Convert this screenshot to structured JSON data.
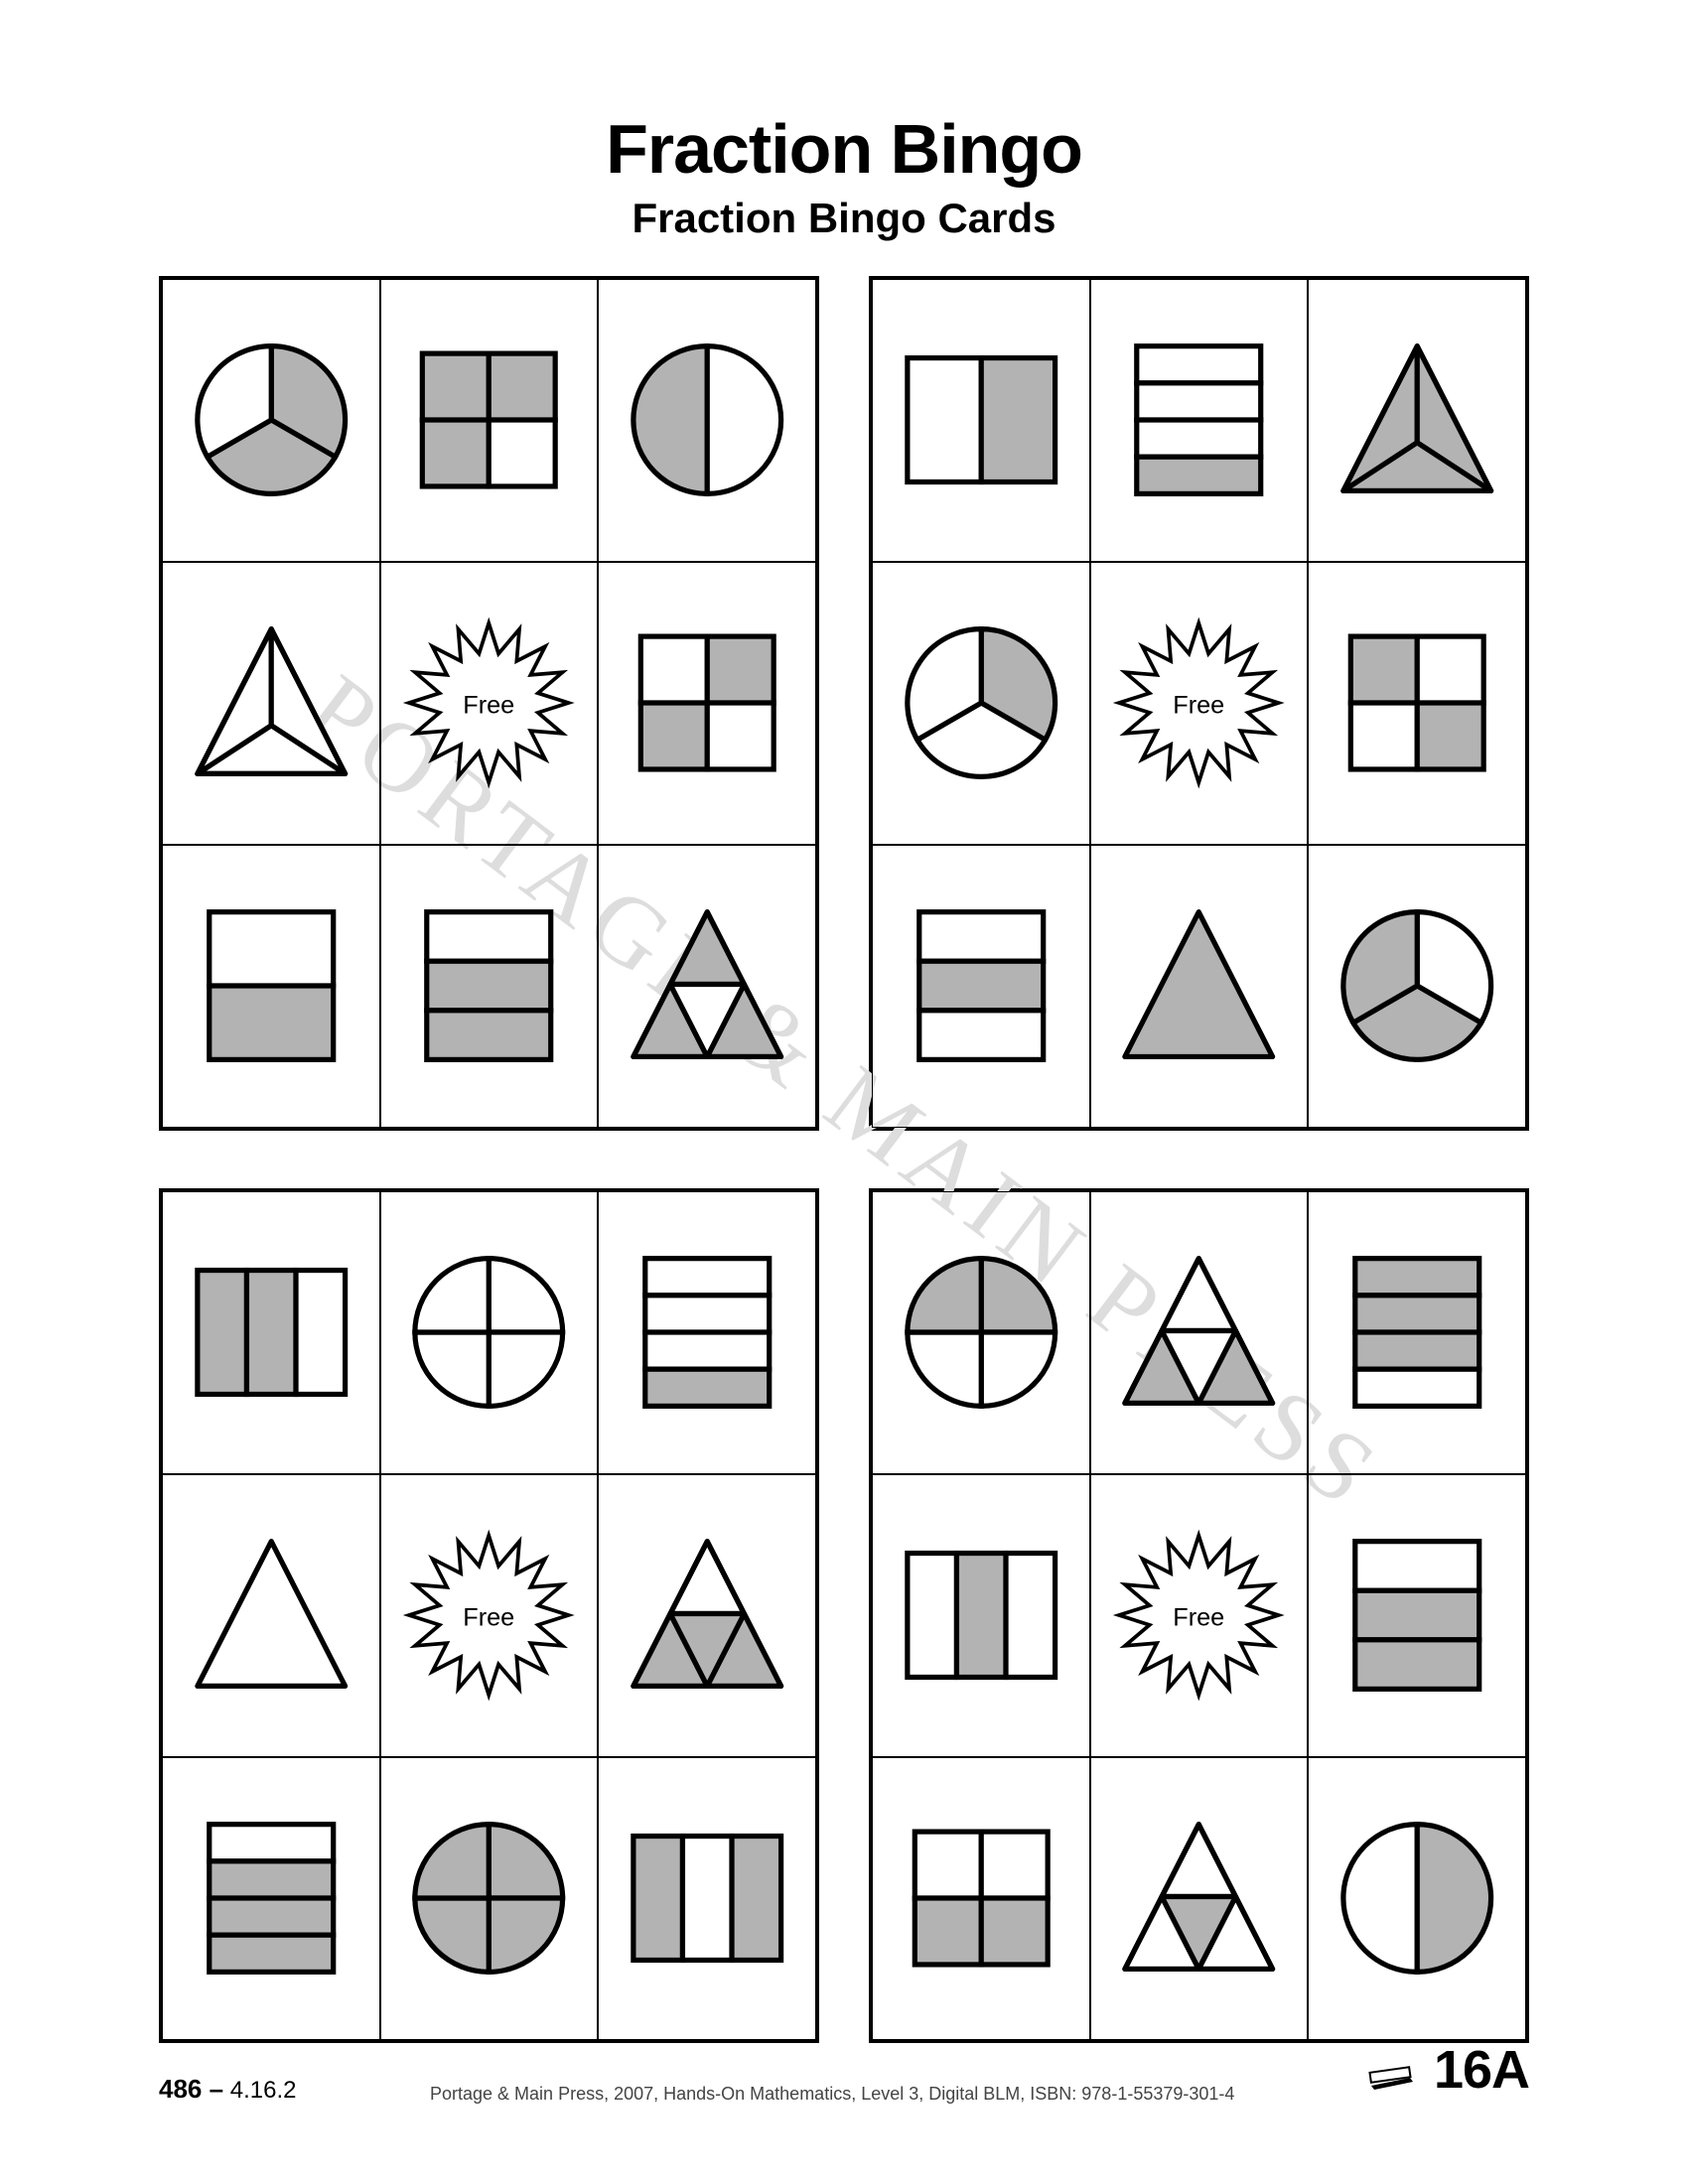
{
  "colors": {
    "fill": "#b3b3b3",
    "stroke": "#000",
    "bg": "#fff"
  },
  "title": "Fraction Bingo",
  "subtitle": "Fraction Bingo Cards",
  "free_label": "Free",
  "watermark": "PORTAGE & MAIN PRESS",
  "footer": {
    "page_left_bold": "486 –",
    "page_left_small": " 4.16.2",
    "center": "Portage & Main Press, 2007, Hands-On Mathematics, Level 3, Digital BLM, ISBN: 978-1-55379-301-4",
    "right": "16A"
  },
  "cards": [
    {
      "cells": [
        {
          "shape": "circle",
          "parts": 3,
          "shaded": [
            0,
            1
          ]
        },
        {
          "shape": "square",
          "parts": 4,
          "shaded": [
            0,
            1,
            2
          ]
        },
        {
          "shape": "circle",
          "parts": 2,
          "shaded": [
            0
          ]
        },
        {
          "shape": "triangle",
          "parts": 3,
          "shaded": []
        },
        {
          "shape": "free"
        },
        {
          "shape": "square",
          "parts": 4,
          "shaded": [
            1,
            2
          ]
        },
        {
          "shape": "rect",
          "parts": 2,
          "orient": "h",
          "shaded": [
            1
          ]
        },
        {
          "shape": "rect",
          "parts": 3,
          "orient": "h",
          "shaded": [
            1,
            2
          ]
        },
        {
          "shape": "triangle",
          "parts": 4,
          "shaded": [
            0,
            1,
            2
          ]
        }
      ]
    },
    {
      "cells": [
        {
          "shape": "rect",
          "parts": 2,
          "orient": "v",
          "shaded": [
            1
          ]
        },
        {
          "shape": "rect",
          "parts": 4,
          "orient": "h",
          "shaded": [
            3
          ]
        },
        {
          "shape": "triangle",
          "parts": 3,
          "shaded": [
            0,
            1,
            2
          ]
        },
        {
          "shape": "circle",
          "parts": 3,
          "shaded": [
            0
          ]
        },
        {
          "shape": "free"
        },
        {
          "shape": "square",
          "parts": 4,
          "shaded": [
            0,
            3
          ]
        },
        {
          "shape": "rect",
          "parts": 3,
          "orient": "h",
          "shaded": [
            1
          ]
        },
        {
          "shape": "triangle",
          "parts": 1,
          "shaded": [
            0
          ]
        },
        {
          "shape": "circle",
          "parts": 3,
          "shaded": [
            1,
            2
          ]
        }
      ]
    },
    {
      "cells": [
        {
          "shape": "rect",
          "parts": 3,
          "orient": "v",
          "shaded": [
            0,
            1
          ]
        },
        {
          "shape": "circle",
          "parts": 4,
          "shaded": []
        },
        {
          "shape": "rect",
          "parts": 4,
          "orient": "h",
          "shaded": [
            3
          ]
        },
        {
          "shape": "triangle",
          "parts": 1,
          "shaded": []
        },
        {
          "shape": "free"
        },
        {
          "shape": "triangle",
          "parts": 4,
          "shaded": [
            0,
            2,
            3
          ]
        },
        {
          "shape": "rect",
          "parts": 4,
          "orient": "h",
          "shaded": [
            1,
            2,
            3
          ]
        },
        {
          "shape": "circle",
          "parts": 4,
          "shaded": [
            0,
            1,
            2,
            3
          ]
        },
        {
          "shape": "rect",
          "parts": 3,
          "orient": "v",
          "shaded": [
            0,
            2
          ]
        }
      ]
    },
    {
      "cells": [
        {
          "shape": "circle",
          "parts": 4,
          "shaded": [
            0,
            3
          ]
        },
        {
          "shape": "triangle",
          "parts": 4,
          "shaded": [
            0,
            2
          ]
        },
        {
          "shape": "rect",
          "parts": 4,
          "orient": "h",
          "shaded": [
            0,
            1,
            2
          ]
        },
        {
          "shape": "rect",
          "parts": 3,
          "orient": "v",
          "shaded": [
            1
          ]
        },
        {
          "shape": "free"
        },
        {
          "shape": "rect",
          "parts": 3,
          "orient": "h",
          "shaded": [
            1,
            2
          ]
        },
        {
          "shape": "square",
          "parts": 4,
          "shaded": [
            2,
            3
          ]
        },
        {
          "shape": "triangle",
          "parts": 4,
          "shaded": [
            3
          ]
        },
        {
          "shape": "circle",
          "parts": 2,
          "shaded": [
            1
          ]
        }
      ]
    }
  ]
}
